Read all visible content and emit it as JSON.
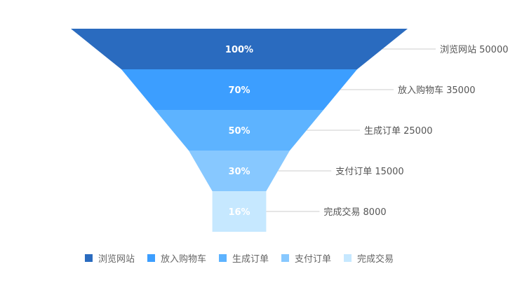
{
  "chart_data": {
    "type": "funnel",
    "stages": [
      {
        "name": "浏览网站",
        "value": 50000,
        "percent": "100%",
        "color": "#2A6BBF"
      },
      {
        "name": "放入购物车",
        "value": 35000,
        "percent": "70%",
        "color": "#3C9EFF"
      },
      {
        "name": "生成订单",
        "value": 25000,
        "percent": "50%",
        "color": "#5DB3FF"
      },
      {
        "name": "支付订单",
        "value": 15000,
        "percent": "30%",
        "color": "#87C8FF"
      },
      {
        "name": "完成交易",
        "value": 8000,
        "percent": "16%",
        "color": "#C6E8FF"
      }
    ],
    "legend_position": "bottom"
  }
}
